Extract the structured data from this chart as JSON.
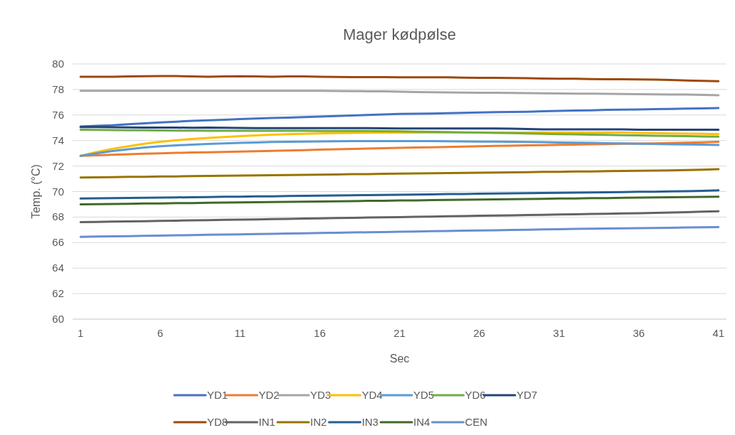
{
  "chart_data": {
    "type": "line",
    "title": "Mager kødpølse",
    "xlabel": "Sec",
    "ylabel": "Temp. (°C)",
    "categories": [
      "1",
      null,
      null,
      null,
      null,
      "6",
      null,
      null,
      null,
      null,
      "11",
      null,
      null,
      null,
      null,
      "16",
      null,
      null,
      null,
      null,
      "21",
      null,
      null,
      null,
      null,
      "26",
      null,
      null,
      null,
      null,
      "31",
      null,
      null,
      null,
      null,
      "36",
      null,
      null,
      null,
      null,
      "41"
    ],
    "ylim": [
      60,
      80
    ],
    "yticks": [
      60,
      62,
      64,
      66,
      68,
      70,
      72,
      74,
      76,
      78,
      80
    ],
    "grid": "y",
    "legend": "bottom",
    "marker": "none",
    "line_style": "solid",
    "series": [
      {
        "name": "YD1",
        "color": "#4472c4",
        "values": [
          75.1,
          75.15,
          75.2,
          75.28,
          75.35,
          75.42,
          75.48,
          75.55,
          75.58,
          75.62,
          75.68,
          75.72,
          75.76,
          75.8,
          75.84,
          75.88,
          75.92,
          75.96,
          76.0,
          76.04,
          76.08,
          76.1,
          76.12,
          76.14,
          76.17,
          76.2,
          76.22,
          76.24,
          76.26,
          76.3,
          76.33,
          76.35,
          76.37,
          76.4,
          76.42,
          76.44,
          76.46,
          76.48,
          76.5,
          76.52,
          76.55
        ]
      },
      {
        "name": "YD2",
        "color": "#ed7d31",
        "values": [
          72.8,
          72.84,
          72.88,
          72.92,
          72.96,
          73.0,
          73.03,
          73.06,
          73.08,
          73.1,
          73.13,
          73.16,
          73.19,
          73.22,
          73.25,
          73.28,
          73.31,
          73.34,
          73.37,
          73.4,
          73.43,
          73.45,
          73.47,
          73.5,
          73.52,
          73.55,
          73.58,
          73.6,
          73.62,
          73.64,
          73.66,
          73.68,
          73.7,
          73.72,
          73.74,
          73.76,
          73.78,
          73.8,
          73.83,
          73.86,
          73.9
        ]
      },
      {
        "name": "YD3",
        "color": "#a5a5a5",
        "values": [
          77.9,
          77.9,
          77.9,
          77.9,
          77.9,
          77.9,
          77.9,
          77.9,
          77.9,
          77.9,
          77.9,
          77.9,
          77.9,
          77.9,
          77.9,
          77.9,
          77.88,
          77.87,
          77.86,
          77.85,
          77.83,
          77.8,
          77.78,
          77.77,
          77.76,
          77.75,
          77.74,
          77.73,
          77.72,
          77.7,
          77.69,
          77.68,
          77.67,
          77.66,
          77.65,
          77.63,
          77.62,
          77.61,
          77.6,
          77.58,
          77.55
        ]
      },
      {
        "name": "YD4",
        "color": "#ffc000",
        "values": [
          72.8,
          73.1,
          73.35,
          73.55,
          73.75,
          73.9,
          74.02,
          74.12,
          74.2,
          74.28,
          74.34,
          74.4,
          74.45,
          74.5,
          74.53,
          74.56,
          74.58,
          74.6,
          74.61,
          74.62,
          74.62,
          74.62,
          74.62,
          74.62,
          74.62,
          74.62,
          74.62,
          74.62,
          74.62,
          74.62,
          74.62,
          74.62,
          74.62,
          74.62,
          74.62,
          74.6,
          74.58,
          74.56,
          74.54,
          74.52,
          74.5
        ]
      },
      {
        "name": "YD5",
        "color": "#5b9bd5",
        "values": [
          72.8,
          73.0,
          73.18,
          73.32,
          73.45,
          73.55,
          73.62,
          73.68,
          73.73,
          73.78,
          73.82,
          73.85,
          73.88,
          73.9,
          73.92,
          73.93,
          73.94,
          73.95,
          73.95,
          73.95,
          73.95,
          73.95,
          73.95,
          73.94,
          73.93,
          73.92,
          73.91,
          73.9,
          73.89,
          73.87,
          73.85,
          73.83,
          73.81,
          73.79,
          73.77,
          73.75,
          73.73,
          73.71,
          73.69,
          73.67,
          73.65
        ]
      },
      {
        "name": "YD6",
        "color": "#70ad47",
        "values": [
          74.85,
          74.83,
          74.82,
          74.8,
          74.8,
          74.79,
          74.78,
          74.78,
          74.77,
          74.77,
          74.77,
          74.76,
          74.76,
          74.76,
          74.76,
          74.75,
          74.75,
          74.75,
          74.75,
          74.74,
          74.72,
          74.7,
          74.68,
          74.66,
          74.64,
          74.62,
          74.6,
          74.58,
          74.55,
          74.52,
          74.5,
          74.48,
          74.46,
          74.44,
          74.42,
          74.4,
          74.38,
          74.36,
          74.34,
          74.32,
          74.3
        ]
      },
      {
        "name": "YD7",
        "color": "#264478",
        "values": [
          75.05,
          75.05,
          75.04,
          75.03,
          75.02,
          75.02,
          75.01,
          75.0,
          75.02,
          75.0,
          74.98,
          74.97,
          74.97,
          74.97,
          74.97,
          74.97,
          74.97,
          74.97,
          74.97,
          74.96,
          74.95,
          74.95,
          74.95,
          74.95,
          74.95,
          74.95,
          74.95,
          74.93,
          74.9,
          74.88,
          74.87,
          74.87,
          74.87,
          74.87,
          74.87,
          74.85,
          74.85,
          74.85,
          74.85,
          74.85,
          74.85
        ]
      },
      {
        "name": "YD8",
        "color": "#9e480e",
        "values": [
          79.0,
          79.0,
          79.0,
          79.02,
          79.04,
          79.05,
          79.05,
          79.03,
          79.0,
          79.03,
          79.04,
          79.02,
          79.0,
          79.03,
          79.03,
          79.0,
          78.98,
          78.97,
          78.97,
          78.97,
          78.96,
          78.95,
          78.95,
          78.95,
          78.93,
          78.92,
          78.91,
          78.9,
          78.88,
          78.86,
          78.85,
          78.84,
          78.82,
          78.8,
          78.8,
          78.79,
          78.78,
          78.74,
          78.7,
          78.68,
          78.65
        ]
      },
      {
        "name": "IN1",
        "color": "#636363",
        "values": [
          67.6,
          67.62,
          67.64,
          67.66,
          67.68,
          67.7,
          67.72,
          67.74,
          67.76,
          67.78,
          67.8,
          67.82,
          67.84,
          67.86,
          67.88,
          67.9,
          67.92,
          67.94,
          67.96,
          67.98,
          68.0,
          68.02,
          68.04,
          68.06,
          68.08,
          68.1,
          68.12,
          68.14,
          68.16,
          68.18,
          68.2,
          68.22,
          68.24,
          68.26,
          68.28,
          68.3,
          68.33,
          68.36,
          68.39,
          68.42,
          68.45
        ]
      },
      {
        "name": "IN2",
        "color": "#997300",
        "values": [
          71.1,
          71.12,
          71.13,
          71.15,
          71.16,
          71.18,
          71.19,
          71.21,
          71.22,
          71.24,
          71.25,
          71.27,
          71.28,
          71.3,
          71.31,
          71.33,
          71.34,
          71.36,
          71.37,
          71.39,
          71.4,
          71.42,
          71.43,
          71.45,
          71.46,
          71.48,
          71.49,
          71.51,
          71.52,
          71.54,
          71.55,
          71.57,
          71.58,
          71.6,
          71.61,
          71.63,
          71.64,
          71.66,
          71.68,
          71.71,
          71.75
        ]
      },
      {
        "name": "IN3",
        "color": "#255e91",
        "values": [
          69.45,
          69.47,
          69.48,
          69.5,
          69.51,
          69.53,
          69.54,
          69.56,
          69.57,
          69.59,
          69.6,
          69.62,
          69.63,
          69.65,
          69.66,
          69.68,
          69.69,
          69.71,
          69.72,
          69.74,
          69.75,
          69.77,
          69.78,
          69.8,
          69.81,
          69.83,
          69.84,
          69.86,
          69.87,
          69.89,
          69.9,
          69.92,
          69.93,
          69.95,
          69.96,
          69.98,
          69.99,
          70.01,
          70.03,
          70.06,
          70.1
        ]
      },
      {
        "name": "IN4",
        "color": "#43682b",
        "values": [
          69.0,
          69.01,
          69.03,
          69.04,
          69.06,
          69.07,
          69.09,
          69.1,
          69.12,
          69.13,
          69.15,
          69.16,
          69.18,
          69.19,
          69.21,
          69.22,
          69.24,
          69.25,
          69.27,
          69.28,
          69.3,
          69.31,
          69.33,
          69.34,
          69.36,
          69.37,
          69.39,
          69.4,
          69.42,
          69.43,
          69.45,
          69.46,
          69.48,
          69.49,
          69.51,
          69.52,
          69.54,
          69.55,
          69.57,
          69.58,
          69.6
        ]
      },
      {
        "name": "CEN",
        "color": "#698ed0",
        "values": [
          66.45,
          66.47,
          66.49,
          66.51,
          66.53,
          66.55,
          66.57,
          66.59,
          66.61,
          66.63,
          66.65,
          66.67,
          66.69,
          66.71,
          66.73,
          66.75,
          66.77,
          66.79,
          66.81,
          66.83,
          66.85,
          66.87,
          66.89,
          66.91,
          66.93,
          66.95,
          66.97,
          66.99,
          67.01,
          67.03,
          67.05,
          67.07,
          67.09,
          67.1,
          67.12,
          67.13,
          67.15,
          67.16,
          67.18,
          67.2,
          67.22
        ]
      }
    ]
  }
}
